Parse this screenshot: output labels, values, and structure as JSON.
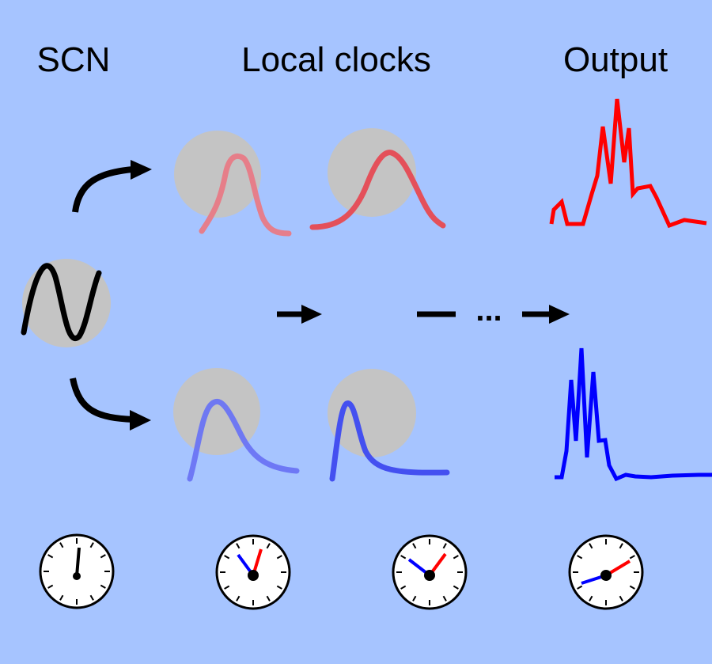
{
  "headings": {
    "scn": "SCN",
    "local_clocks": "Local clocks",
    "output": "Output"
  },
  "ellipsis": "...",
  "colors": {
    "background": "#a6c4ff",
    "node_fill": "#c4c4c4",
    "red_signal": "#ff0000",
    "blue_signal": "#0000ff",
    "arrow": "#000000"
  },
  "icons": [
    "clock-icon",
    "arrow-icon",
    "sine-wave-icon",
    "peak-curve-icon",
    "output-trace-icon"
  ]
}
